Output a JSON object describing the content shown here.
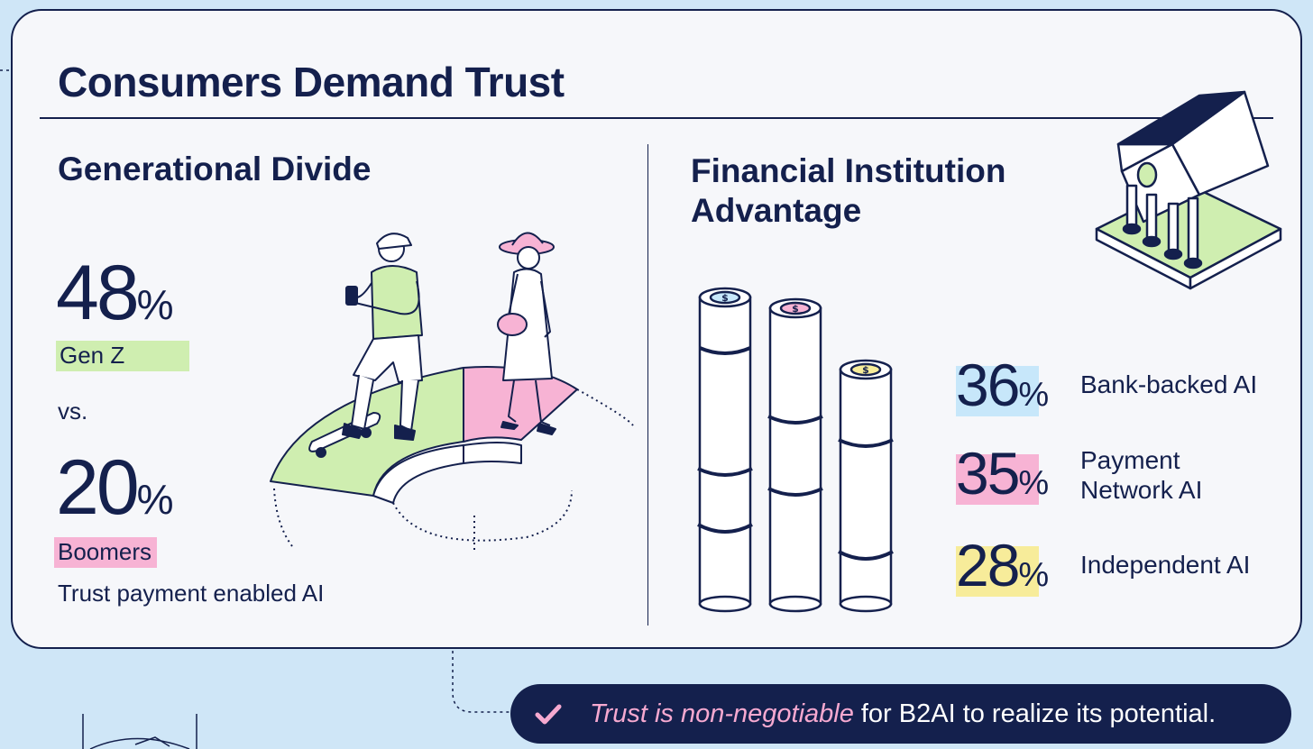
{
  "title": "Consumers Demand Trust",
  "left": {
    "heading": "Generational Divide",
    "genz": {
      "value": "48",
      "symbol": "%",
      "label": "Gen Z"
    },
    "vs": "vs.",
    "boomers": {
      "value": "20",
      "symbol": "%",
      "label": "Boomers"
    },
    "caption": "Trust payment enabled AI"
  },
  "right": {
    "heading_line1": "Financial Institution",
    "heading_line2": "Advantage",
    "stats": [
      {
        "value": "36",
        "symbol": "%",
        "label": "Bank-backed AI",
        "highlight": "#c7e7fa"
      },
      {
        "value": "35",
        "symbol": "%",
        "label_line1": "Payment",
        "label_line2": "Network AI",
        "highlight": "#f7b3d4"
      },
      {
        "value": "28",
        "symbol": "%",
        "label": "Independent AI",
        "highlight": "#f7ec9a"
      }
    ]
  },
  "banner": {
    "emphasis": "Trust is non-negotiable",
    "text": "for B2AI to realize its potential."
  },
  "colors": {
    "navy": "#14204d",
    "green": "#cfeeb0",
    "pink": "#f7b3d4",
    "blue": "#c7e7fa",
    "yellow": "#f7ec9a",
    "background": "#cfe6f7"
  },
  "icons": [
    "bank-icon",
    "coin-stack-icon",
    "dollar-icon",
    "check-icon"
  ]
}
